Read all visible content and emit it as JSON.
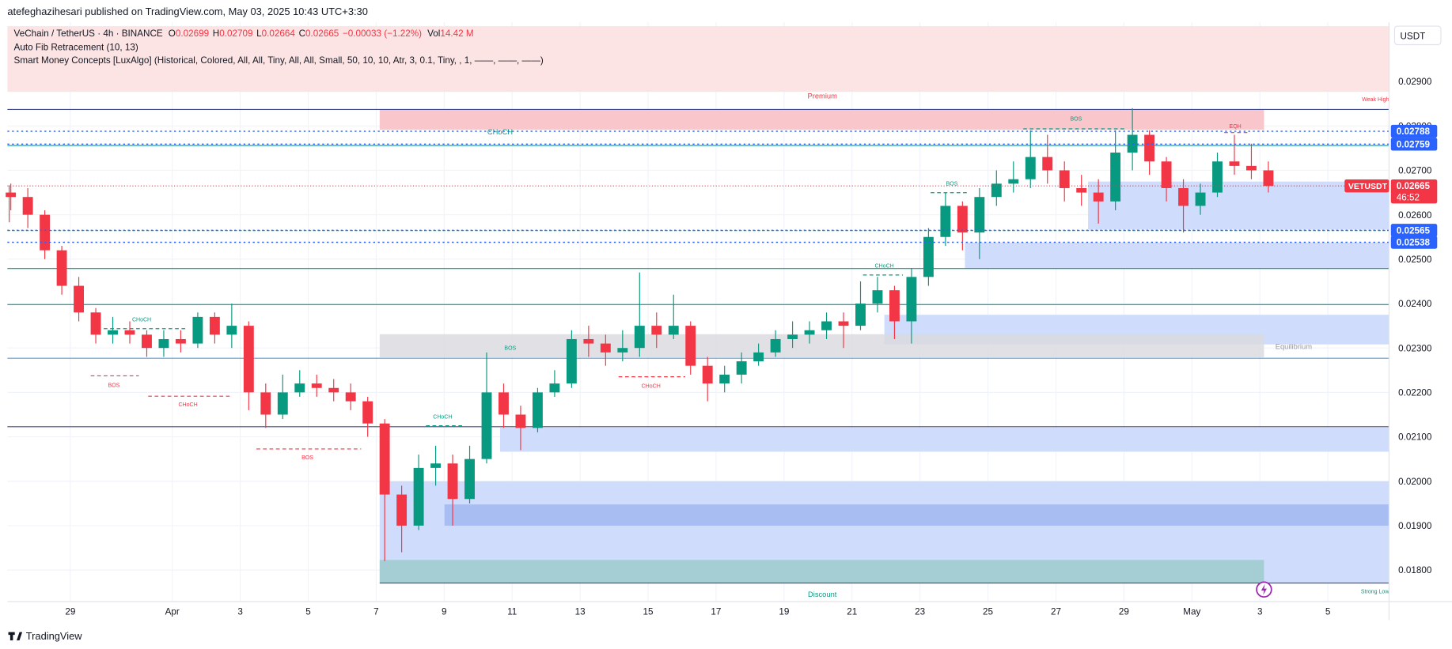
{
  "header": {
    "published": "atefeghazihesari published on TradingView.com, May 03, 2025 10:43 UTC+3:30",
    "symbol": "VeChain / TetherUS · 4h · BINANCE",
    "o_label": "O",
    "o": "0.02699",
    "h_label": "H",
    "h": "0.02709",
    "l_label": "L",
    "l": "0.02664",
    "c_label": "C",
    "c": "0.02665",
    "change": "−0.00033 (−1.22%)",
    "vol_label": "Vol",
    "vol": "14.42 M",
    "indicator1": "Auto Fib Retracement (10, 13)",
    "indicator2": "Smart Money Concepts [LuxAlgo] (Historical, Colored, All, All, Tiny, All, All, Small, 50, 10, 10, Atr, 3, 0.1, Tiny, , 1, ——, ——, ——)",
    "currency": "USDT",
    "logo": "TradingView"
  },
  "chart_data": {
    "type": "candlestick",
    "up_color": "#089981",
    "down_color": "#f23645",
    "open": [
      0.0265,
      0.0264,
      0.026,
      0.0252,
      0.0244,
      0.0238,
      0.0233,
      0.0234,
      0.0233,
      0.023,
      0.0232,
      0.0231,
      0.0237,
      0.0233,
      0.0235,
      0.022,
      0.0215,
      0.022,
      0.0222,
      0.0221,
      0.022,
      0.0218,
      0.0213,
      0.0197,
      0.019,
      0.0203,
      0.0204,
      0.0196,
      0.0205,
      0.022,
      0.0215,
      0.0212,
      0.022,
      0.0222,
      0.0232,
      0.0231,
      0.0229,
      0.023,
      0.0235,
      0.0233,
      0.0235,
      0.0226,
      0.0222,
      0.0224,
      0.0227,
      0.0229,
      0.0232,
      0.0233,
      0.0234,
      0.0236,
      0.0235,
      0.024,
      0.0243,
      0.0236,
      0.0246,
      0.0255,
      0.0262,
      0.0256,
      0.0264,
      0.0267,
      0.0268,
      0.0273,
      0.027,
      0.0266,
      0.0265,
      0.0263,
      0.0274,
      0.0278,
      0.0272,
      0.0266,
      0.0262,
      0.0265,
      0.0272,
      0.0271,
      0.027
    ],
    "high": [
      0.0267,
      0.0266,
      0.0261,
      0.0253,
      0.0246,
      0.0239,
      0.0237,
      0.0236,
      0.0234,
      0.0234,
      0.0234,
      0.0238,
      0.0238,
      0.024,
      0.0236,
      0.0222,
      0.0224,
      0.0225,
      0.0224,
      0.0223,
      0.0222,
      0.0219,
      0.0214,
      0.0199,
      0.0206,
      0.0208,
      0.0206,
      0.0208,
      0.0229,
      0.0222,
      0.0217,
      0.0221,
      0.0225,
      0.0234,
      0.0235,
      0.0233,
      0.0234,
      0.0247,
      0.0238,
      0.0242,
      0.0236,
      0.0228,
      0.0226,
      0.0229,
      0.0231,
      0.0234,
      0.0236,
      0.0236,
      0.0238,
      0.0238,
      0.0245,
      0.0246,
      0.0244,
      0.0248,
      0.0257,
      0.0265,
      0.0263,
      0.0266,
      0.027,
      0.0272,
      0.0279,
      0.0278,
      0.0272,
      0.0269,
      0.0268,
      0.0279,
      0.0284,
      0.0279,
      0.0273,
      0.0268,
      0.0267,
      0.0274,
      0.0278,
      0.0276,
      0.0272
    ],
    "low": [
      0.0261,
      0.0257,
      0.025,
      0.0242,
      0.0236,
      0.0231,
      0.0231,
      0.0231,
      0.0228,
      0.0228,
      0.0229,
      0.023,
      0.0231,
      0.023,
      0.0216,
      0.0212,
      0.0214,
      0.0219,
      0.0219,
      0.0218,
      0.0216,
      0.021,
      0.0182,
      0.0184,
      0.0189,
      0.0199,
      0.019,
      0.0195,
      0.0204,
      0.0212,
      0.0207,
      0.0211,
      0.0219,
      0.0221,
      0.0228,
      0.0226,
      0.0227,
      0.0228,
      0.023,
      0.0232,
      0.0224,
      0.0218,
      0.022,
      0.0222,
      0.0226,
      0.0228,
      0.023,
      0.0231,
      0.0232,
      0.023,
      0.0234,
      0.0238,
      0.0232,
      0.0231,
      0.0244,
      0.0253,
      0.0252,
      0.025,
      0.0262,
      0.0265,
      0.0266,
      0.0267,
      0.0263,
      0.0262,
      0.0258,
      0.0261,
      0.027,
      0.0269,
      0.0263,
      0.0256,
      0.026,
      0.0264,
      0.0269,
      0.0268,
      0.0265
    ],
    "close": [
      0.0264,
      0.026,
      0.0252,
      0.0244,
      0.0238,
      0.0233,
      0.0234,
      0.0233,
      0.023,
      0.0232,
      0.0231,
      0.0237,
      0.0233,
      0.0235,
      0.022,
      0.0215,
      0.022,
      0.0222,
      0.0221,
      0.022,
      0.0218,
      0.0213,
      0.0197,
      0.019,
      0.0203,
      0.0204,
      0.0196,
      0.0205,
      0.022,
      0.0215,
      0.0212,
      0.022,
      0.0222,
      0.0232,
      0.0231,
      0.0229,
      0.023,
      0.0235,
      0.0233,
      0.0235,
      0.0226,
      0.0222,
      0.0224,
      0.0227,
      0.0229,
      0.0232,
      0.0233,
      0.0234,
      0.0236,
      0.0235,
      0.024,
      0.0243,
      0.0236,
      0.0246,
      0.0255,
      0.0262,
      0.0256,
      0.0264,
      0.0267,
      0.0268,
      0.0273,
      0.027,
      0.0266,
      0.0265,
      0.0263,
      0.0274,
      0.0278,
      0.0272,
      0.0266,
      0.0262,
      0.0265,
      0.0272,
      0.0271,
      0.027,
      0.02665
    ],
    "xlim": [
      0.3,
      81.6
    ],
    "xticks": [
      {
        "value": 4,
        "label": "29"
      },
      {
        "value": 10,
        "label": "Apr"
      },
      {
        "value": 14,
        "label": "3"
      },
      {
        "value": 18,
        "label": "5"
      },
      {
        "value": 22,
        "label": "7"
      },
      {
        "value": 26,
        "label": "9"
      },
      {
        "value": 30,
        "label": "11"
      },
      {
        "value": 34,
        "label": "13"
      },
      {
        "value": 38,
        "label": "15"
      },
      {
        "value": 42,
        "label": "17"
      },
      {
        "value": 46,
        "label": "19"
      },
      {
        "value": 50,
        "label": "21"
      },
      {
        "value": 54,
        "label": "23"
      },
      {
        "value": 58,
        "label": "25"
      },
      {
        "value": 62,
        "label": "27"
      },
      {
        "value": 66,
        "label": "29"
      },
      {
        "value": 70,
        "label": "May"
      },
      {
        "value": 74,
        "label": "3"
      },
      {
        "value": 78,
        "label": "5"
      }
    ],
    "ylim": [
      0.01729,
      0.03033
    ],
    "yticks": [
      {
        "value": 0.018,
        "label": "0.01800"
      },
      {
        "value": 0.019,
        "label": "0.01900"
      },
      {
        "value": 0.02,
        "label": "0.02000"
      },
      {
        "value": 0.021,
        "label": "0.02100"
      },
      {
        "value": 0.022,
        "label": "0.02200"
      },
      {
        "value": 0.023,
        "label": "0.02300"
      },
      {
        "value": 0.024,
        "label": "0.02400"
      },
      {
        "value": 0.025,
        "label": "0.02500"
      },
      {
        "value": 0.026,
        "label": "0.02600"
      },
      {
        "value": 0.027,
        "label": "0.02700"
      },
      {
        "value": 0.028,
        "label": "0.02800"
      },
      {
        "value": 0.029,
        "label": "0.02900"
      }
    ],
    "grid": true,
    "price_lines": [
      {
        "value": 0.02788,
        "color": "#2962ff"
      },
      {
        "value": 0.02759,
        "color": "#2962ff"
      },
      {
        "value": 0.02565,
        "color": "#2962ff"
      },
      {
        "value": 0.02538,
        "color": "#2962ff"
      }
    ],
    "current": {
      "name": "VETUSDT",
      "value": 0.02665,
      "countdown": "46:52",
      "color": "#f23645"
    },
    "annotations": [
      "Premium",
      "Weak High",
      "CHoCH",
      "BOS",
      "EQH",
      "BOS",
      "CHoCH",
      "CHoCH",
      "BOS",
      "CHoCH",
      "BOS",
      "Equilibrium",
      "CHoCH",
      "BOS",
      "CHoCH",
      "Discount",
      "Strong Low"
    ]
  }
}
